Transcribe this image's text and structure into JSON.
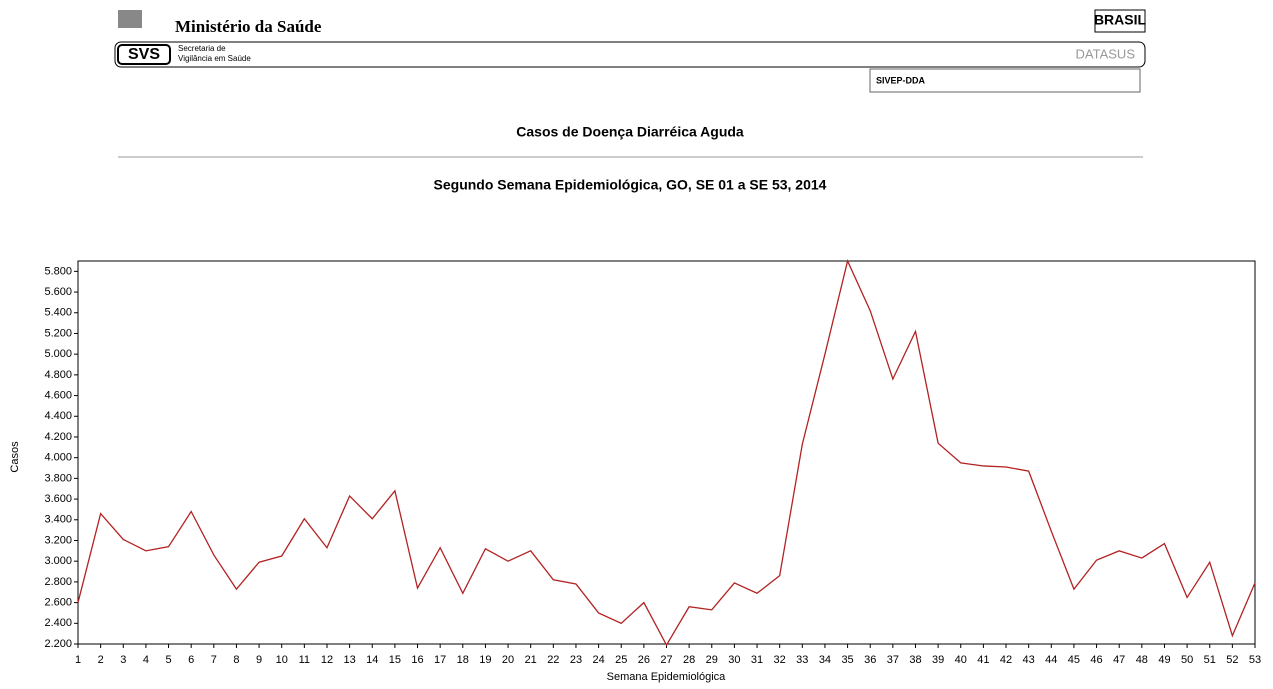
{
  "header": {
    "ministry": "Ministério da Saúde",
    "svs": "SVS",
    "svs_name": [
      "Secretaria de",
      "Vigilância em Saúde"
    ],
    "datasus": "DATASUS",
    "sivep": "SIVEP-DDA",
    "brasil": "BRASIL"
  },
  "chart_data": {
    "type": "line",
    "title": "Casos de Doença Diarréica Aguda",
    "subtitle": "Segundo Semana Epidemiológica,  GO, SE 01 a SE 53,  2014",
    "x_label": "Semana Epidemiológica",
    "y_label": "Casos",
    "x": [
      1,
      2,
      3,
      4,
      5,
      6,
      7,
      8,
      9,
      10,
      11,
      12,
      13,
      14,
      15,
      16,
      17,
      18,
      19,
      20,
      21,
      22,
      23,
      24,
      25,
      26,
      27,
      28,
      29,
      30,
      31,
      32,
      33,
      34,
      35,
      36,
      37,
      38,
      39,
      40,
      41,
      42,
      43,
      44,
      45,
      46,
      47,
      48,
      49,
      50,
      51,
      52,
      53
    ],
    "series": [
      {
        "name": "Casos",
        "color": "#b22222",
        "values": [
          2600,
          3460,
          3210,
          3100,
          3140,
          3480,
          3060,
          2730,
          2990,
          3050,
          3410,
          3130,
          3630,
          3410,
          3680,
          2740,
          3130,
          2690,
          3120,
          3000,
          3100,
          2820,
          2780,
          2500,
          2400,
          2600,
          2190,
          2560,
          2530,
          2790,
          2690,
          2860,
          4130,
          5000,
          5900,
          5420,
          4760,
          5220,
          4140,
          3950,
          3920,
          3910,
          3870,
          3290,
          2730,
          3010,
          3100,
          3030,
          3170,
          2650,
          2990,
          2280,
          2790
        ]
      }
    ],
    "xlim": [
      1,
      53
    ],
    "xticks": [
      1,
      2,
      3,
      4,
      5,
      6,
      7,
      8,
      9,
      10,
      11,
      12,
      13,
      14,
      15,
      16,
      17,
      18,
      19,
      20,
      21,
      22,
      23,
      24,
      25,
      26,
      27,
      28,
      29,
      30,
      31,
      32,
      33,
      34,
      35,
      36,
      37,
      38,
      39,
      40,
      41,
      42,
      43,
      44,
      45,
      46,
      47,
      48,
      49,
      50,
      51,
      52,
      53
    ],
    "ylim": [
      2200,
      5900
    ],
    "yticks": [
      {
        "value": 2200,
        "label": "2.200"
      },
      {
        "value": 2400,
        "label": "2.400"
      },
      {
        "value": 2600,
        "label": "2.600"
      },
      {
        "value": 2800,
        "label": "2.800"
      },
      {
        "value": 3000,
        "label": "3.000"
      },
      {
        "value": 3200,
        "label": "3.200"
      },
      {
        "value": 3400,
        "label": "3.400"
      },
      {
        "value": 3600,
        "label": "3.600"
      },
      {
        "value": 3800,
        "label": "3.800"
      },
      {
        "value": 4000,
        "label": "4.000"
      },
      {
        "value": 4200,
        "label": "4.200"
      },
      {
        "value": 4400,
        "label": "4.400"
      },
      {
        "value": 4600,
        "label": "4.600"
      },
      {
        "value": 4800,
        "label": "4.800"
      },
      {
        "value": 5000,
        "label": "5.000"
      },
      {
        "value": 5200,
        "label": "5.200"
      },
      {
        "value": 5400,
        "label": "5.400"
      },
      {
        "value": 5600,
        "label": "5.600"
      },
      {
        "value": 5800,
        "label": "5.800"
      }
    ],
    "grid": false
  }
}
